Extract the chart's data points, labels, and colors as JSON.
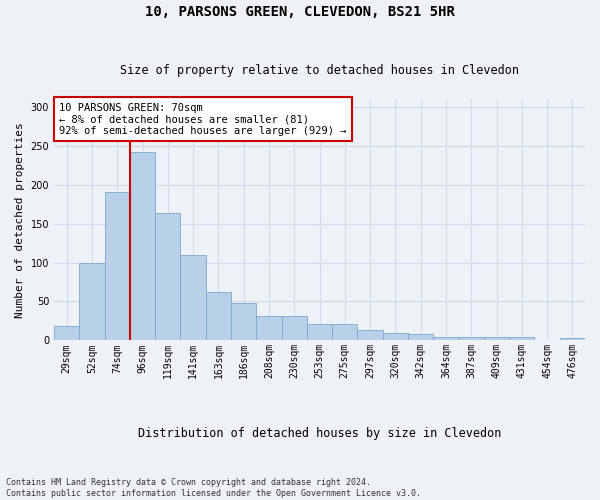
{
  "title": "10, PARSONS GREEN, CLEVEDON, BS21 5HR",
  "subtitle": "Size of property relative to detached houses in Clevedon",
  "xlabel": "Distribution of detached houses by size in Clevedon",
  "ylabel": "Number of detached properties",
  "categories": [
    "29sqm",
    "52sqm",
    "74sqm",
    "96sqm",
    "119sqm",
    "141sqm",
    "163sqm",
    "186sqm",
    "208sqm",
    "230sqm",
    "253sqm",
    "275sqm",
    "297sqm",
    "320sqm",
    "342sqm",
    "364sqm",
    "387sqm",
    "409sqm",
    "431sqm",
    "454sqm",
    "476sqm"
  ],
  "values": [
    18,
    99,
    190,
    242,
    163,
    110,
    62,
    48,
    31,
    31,
    21,
    21,
    13,
    10,
    8,
    4,
    4,
    4,
    4,
    1,
    3
  ],
  "bar_color": "#b8d0e8",
  "bar_edge_color": "#7aaad0",
  "grid_color": "#d0dce8",
  "vline_color": "#cc0000",
  "vline_x": 2.5,
  "annotation_text": "10 PARSONS GREEN: 70sqm\n← 8% of detached houses are smaller (81)\n92% of semi-detached houses are larger (929) →",
  "annotation_box_color": "#ffffff",
  "annotation_box_edge": "#cc0000",
  "ylim": [
    0,
    310
  ],
  "yticks": [
    0,
    50,
    100,
    150,
    200,
    250,
    300
  ],
  "footnote": "Contains HM Land Registry data © Crown copyright and database right 2024.\nContains public sector information licensed under the Open Government Licence v3.0.",
  "background_color": "#eef2f7",
  "title_fontsize": 10,
  "subtitle_fontsize": 8.5,
  "ylabel_fontsize": 8,
  "xlabel_fontsize": 8.5,
  "tick_fontsize": 7,
  "annotation_fontsize": 7.5,
  "footnote_fontsize": 6
}
